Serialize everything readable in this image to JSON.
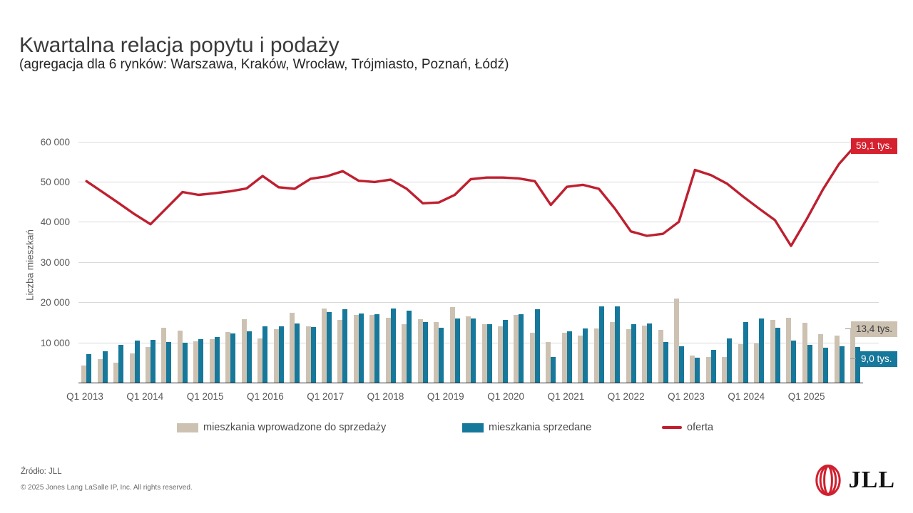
{
  "header": {
    "title": "Kwartalna relacja popytu i podaży",
    "subtitle": "(agregacja dla 6 rynków: Warszawa, Kraków, Wrocław, Trójmiasto, Poznań, Łódź)"
  },
  "chart_data": {
    "type": "bar",
    "subtype": "grouped bars with line overlay",
    "title": "Kwartalna relacja popytu i podaży",
    "xlabel": "",
    "ylabel": "Liczba mieszkań",
    "ylim": [
      0,
      62000
    ],
    "grid": "horizontal",
    "y_ticks": [
      "10 000",
      "20 000",
      "30 000",
      "40 000",
      "50 000",
      "60 000"
    ],
    "y_tick_values": [
      10000,
      20000,
      30000,
      40000,
      50000,
      60000
    ],
    "x_tick_labels": [
      "Q1 2013",
      "Q1 2014",
      "Q1 2015",
      "Q1 2016",
      "Q1 2017",
      "Q1 2018",
      "Q1 2019",
      "Q1 2020",
      "Q1 2021",
      "Q1 2022",
      "Q1 2023",
      "Q1 2024",
      "Q1 2025"
    ],
    "categories": [
      "Q1 2013",
      "Q2 2013",
      "Q3 2013",
      "Q4 2013",
      "Q1 2014",
      "Q2 2014",
      "Q3 2014",
      "Q4 2014",
      "Q1 2015",
      "Q2 2015",
      "Q3 2015",
      "Q4 2015",
      "Q1 2016",
      "Q2 2016",
      "Q3 2016",
      "Q4 2016",
      "Q1 2017",
      "Q2 2017",
      "Q3 2017",
      "Q4 2017",
      "Q1 2018",
      "Q2 2018",
      "Q3 2018",
      "Q4 2018",
      "Q1 2019",
      "Q2 2019",
      "Q3 2019",
      "Q4 2019",
      "Q1 2020",
      "Q2 2020",
      "Q3 2020",
      "Q4 2020",
      "Q1 2021",
      "Q2 2021",
      "Q3 2021",
      "Q4 2021",
      "Q1 2022",
      "Q2 2022",
      "Q3 2022",
      "Q4 2022",
      "Q1 2023",
      "Q2 2023",
      "Q3 2023",
      "Q4 2023",
      "Q1 2024",
      "Q2 2024",
      "Q3 2024",
      "Q4 2024",
      "Q1 2025"
    ],
    "series": [
      {
        "name": "mieszkania wprowadzone do sprzedaży",
        "type": "bar",
        "color": "#cdc2b2",
        "values": [
          4400,
          6100,
          5200,
          7500,
          9100,
          13800,
          13200,
          10500,
          11000,
          12800,
          15900,
          11200,
          13400,
          17500,
          14200,
          18600,
          15700,
          17100,
          17000,
          16400,
          14700,
          15900,
          15200,
          19000,
          16600,
          14700,
          14200,
          17100,
          12600,
          10200,
          12600,
          11800,
          13600,
          15300,
          13500,
          14400,
          13300,
          21100,
          6900,
          6600,
          6500,
          9800,
          9900,
          15700,
          16400,
          15100,
          12300,
          11900,
          13400
        ]
      },
      {
        "name": "mieszkania sprzedane",
        "type": "bar",
        "color": "#16789a",
        "values": [
          7300,
          7900,
          9500,
          10700,
          10800,
          10200,
          10100,
          11000,
          11500,
          12500,
          12900,
          14100,
          14200,
          14900,
          14000,
          17800,
          18500,
          17300,
          17200,
          18600,
          18100,
          15300,
          13900,
          16100,
          16100,
          14800,
          15800,
          17200,
          18500,
          6500,
          13000,
          13700,
          19200,
          19100,
          14700,
          14900,
          10200,
          9200,
          6300,
          8400,
          11200,
          15300,
          16100,
          13900,
          10700,
          9500,
          8800,
          9300,
          9000
        ]
      },
      {
        "name": "oferta",
        "type": "line",
        "color": "#be2030",
        "values": [
          50300,
          47600,
          44900,
          42100,
          39600,
          43600,
          47600,
          46900,
          47300,
          47800,
          48500,
          51600,
          48800,
          48400,
          50900,
          51500,
          52800,
          50400,
          50100,
          50700,
          48400,
          44800,
          45000,
          46900,
          50800,
          51200,
          51200,
          51000,
          50300,
          44400,
          48900,
          49400,
          48400,
          43500,
          37800,
          36700,
          37200,
          40200,
          53100,
          51800,
          49700,
          46500,
          43500,
          40600,
          34200,
          41000,
          48300,
          54600,
          59100
        ]
      }
    ],
    "annotations": [
      {
        "label": "59,1 tys.",
        "value": 59100,
        "series": "oferta",
        "style": "red"
      },
      {
        "label": "13,4 tys.",
        "value": 13400,
        "series": "mieszkania wprowadzone do sprzedaży",
        "style": "beige"
      },
      {
        "label": "9,0 tys.",
        "value": 9000,
        "series": "mieszkania sprzedane",
        "style": "teal"
      }
    ],
    "legend_position": "bottom"
  },
  "legend": {
    "items": [
      {
        "label": "mieszkania wprowadzone do sprzedaży",
        "color": "#cdc2b2",
        "marker": "square"
      },
      {
        "label": "mieszkania sprzedane",
        "color": "#16789a",
        "marker": "square"
      },
      {
        "label": "oferta",
        "color": "#be2030",
        "marker": "line"
      }
    ]
  },
  "footer": {
    "source": "Źródło: JLL",
    "copyright": "© 2025 Jones Lang LaSalle IP, Inc. All rights reserved.",
    "logo_text": "JLL",
    "logo_color": "#d0202f"
  }
}
